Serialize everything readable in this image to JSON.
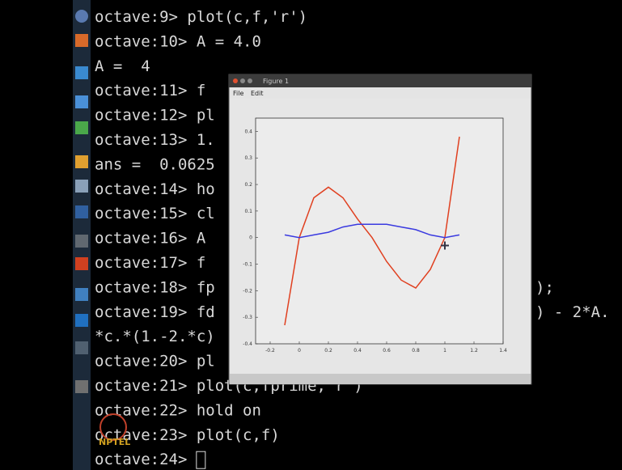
{
  "terminal": {
    "lines": [
      {
        "text": "octave:9> plot(c,f,'r')"
      },
      {
        "text": "octave:10> A = 4.0"
      },
      {
        "text": "A =  4"
      },
      {
        "text": "octave:11> f"
      },
      {
        "text": "octave:12> pl"
      },
      {
        "text": "octave:13> 1."
      },
      {
        "text": "ans =  0.0625"
      },
      {
        "text": "octave:14> ho"
      },
      {
        "text": "octave:15> cl"
      },
      {
        "text": "octave:16> A"
      },
      {
        "text": "octave:17> f"
      },
      {
        "text": "octave:18> fp",
        "right": ");"
      },
      {
        "text": "octave:19> fd",
        "right": ") - 2*A."
      },
      {
        "text": "*c.*(1.-2.*c)"
      },
      {
        "text": "octave:20> pl"
      },
      {
        "text": "octave:21> plot(c,fprime,'r')"
      },
      {
        "text": "octave:22> hold on"
      },
      {
        "text": "octave:23> plot(c,f)"
      },
      {
        "text": "octave:24> "
      }
    ]
  },
  "figure": {
    "title": "Figure 1",
    "menu": [
      "File",
      "Edit"
    ],
    "chart_data": {
      "type": "line",
      "x": [
        -0.1,
        0,
        0.1,
        0.2,
        0.3,
        0.4,
        0.5,
        0.6,
        0.7,
        0.8,
        0.9,
        1.0,
        1.1
      ],
      "series": [
        {
          "color": "#e04020",
          "values": [
            -0.33,
            0,
            0.15,
            0.19,
            0.15,
            0.07,
            0,
            -0.09,
            -0.16,
            -0.19,
            -0.12,
            0,
            0.38
          ]
        },
        {
          "color": "#3a3ae0",
          "values": [
            0.01,
            0,
            0.01,
            0.02,
            0.04,
            0.05,
            0.05,
            0.05,
            0.04,
            0.03,
            0.01,
            0,
            0.01
          ]
        }
      ],
      "marker": {
        "x": 1.0,
        "y": -0.03
      },
      "xlim": [
        -0.3,
        1.4
      ],
      "ylim": [
        -0.4,
        0.45
      ],
      "xticks": [
        -0.2,
        0,
        0.2,
        0.4,
        0.6,
        0.8,
        1,
        1.2,
        1.4
      ],
      "yticks": [
        -0.4,
        -0.3,
        -0.2,
        -0.1,
        0,
        0.1,
        0.2,
        0.3,
        0.4
      ]
    }
  },
  "logo": "NPTEL"
}
